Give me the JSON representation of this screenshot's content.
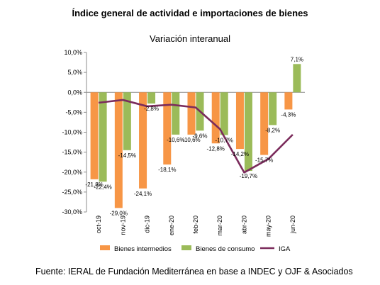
{
  "header": {
    "title": "Índice general de actividad e importaciones de bienes"
  },
  "footer": {
    "source": "Fuente: IERAL de Fundación Mediterránea en base a INDEC y OJF & Asociados"
  },
  "chart_data": {
    "type": "bar",
    "title": "Variación interanual",
    "categories": [
      "oct-19",
      "nov-19",
      "dic-19",
      "ene-20",
      "feb-20",
      "mar-20",
      "abr-20",
      "may-20",
      "jun-20"
    ],
    "ylim": [
      -30,
      10
    ],
    "yticks": [
      "10,0%",
      "5,0%",
      "0,0%",
      "-5,0%",
      "-10,0%",
      "-15,0%",
      "-20,0%",
      "-25,0%",
      "-30,0%"
    ],
    "ytick_values": [
      10,
      5,
      0,
      -5,
      -10,
      -15,
      -20,
      -25,
      -30
    ],
    "grid": false,
    "legend_position": "bottom",
    "series": [
      {
        "name": "Bienes intermedios",
        "type": "bar",
        "color": "#f79646",
        "values": [
          -21.8,
          -29.0,
          -24.1,
          -18.1,
          -10.6,
          -12.8,
          -14.2,
          -15.7,
          -4.3
        ],
        "labels": [
          "-21,8%",
          "-29,0%",
          "-24,1%",
          "-18,1%",
          "-10,6%",
          "-12,8%",
          "-14,2%",
          "-15,7%",
          "-4,3%"
        ]
      },
      {
        "name": "Bienes de consumo",
        "type": "bar",
        "color": "#9bbb59",
        "values": [
          -22.4,
          -14.5,
          -2.8,
          -10.6,
          -9.6,
          -10.7,
          -19.7,
          -8.2,
          7.1
        ],
        "labels": [
          "-22,4%",
          "-14,5%",
          "-2,8%",
          "-10,6%",
          "-9,6%",
          "-10,7%",
          "-19,7%",
          "-8,2%",
          "7,1%"
        ]
      },
      {
        "name": "IGA",
        "type": "line",
        "color": "#7b2c5c",
        "values": [
          -2.6,
          -1.9,
          -3.5,
          -3.1,
          -3.8,
          -9.2,
          -20.1,
          -16.7,
          -10.6
        ]
      }
    ]
  }
}
